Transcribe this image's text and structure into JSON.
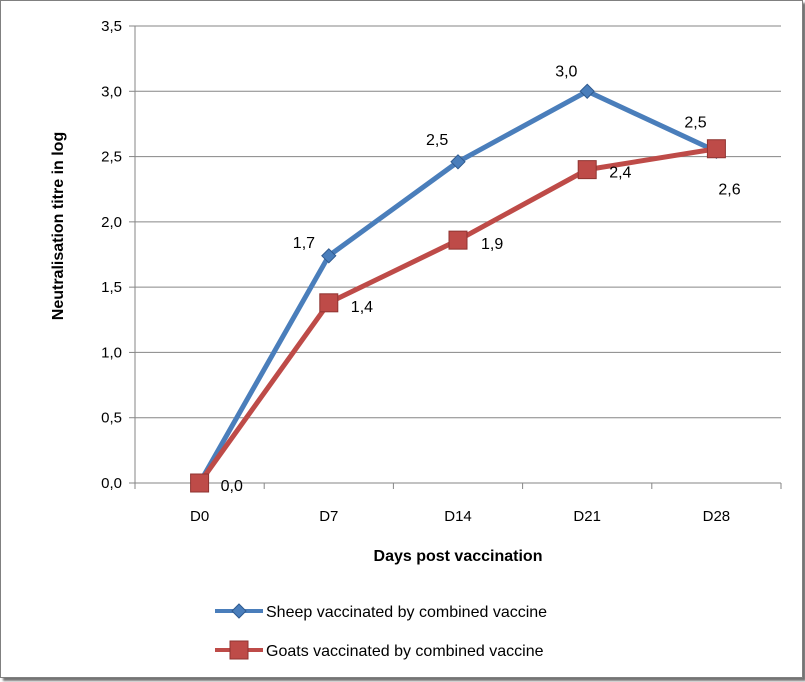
{
  "chart_data": {
    "type": "line",
    "title": "",
    "xlabel": "Days post vaccination",
    "ylabel": "Neutralisation titre in  log",
    "categories": [
      "D0",
      "D7",
      "D14",
      "D21",
      "D28"
    ],
    "ylim": [
      0,
      3.5
    ],
    "yticks": [
      0,
      0.5,
      1.0,
      1.5,
      2.0,
      2.5,
      3.0,
      3.5
    ],
    "ytick_labels": [
      "0,0",
      "0,5",
      "1,0",
      "1,5",
      "2,0",
      "2,5",
      "3,0",
      "3,5"
    ],
    "grid": true,
    "legend_position": "bottom",
    "series": [
      {
        "name": "Sheep vaccinated by combined vaccine",
        "color": "#4a7ebb",
        "marker": "diamond",
        "values": [
          0.0,
          1.74,
          2.46,
          3.0,
          2.54
        ],
        "labels": [
          "",
          "1,7",
          "2,5",
          "3,0",
          "2,5"
        ]
      },
      {
        "name": "Goats vaccinated by combined vaccine",
        "color": "#be4b48",
        "marker": "square",
        "values": [
          0.0,
          1.38,
          1.86,
          2.4,
          2.56
        ],
        "labels": [
          "0,0",
          "1,4",
          "1,9",
          "2,4",
          "2,6"
        ]
      }
    ]
  }
}
